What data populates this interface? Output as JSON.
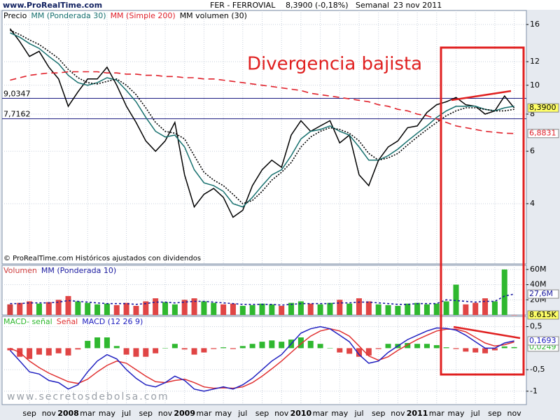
{
  "header": {
    "site": "www.ProRealTime.com",
    "symbol": "FER - FERROVIAL",
    "quote": "8,3900 (-0,18%)",
    "period": "Semanal",
    "date": "23 nov 2011"
  },
  "watermark": "www.secretosdebolsa.com",
  "chart_data": [
    {
      "type": "line",
      "log_scale": true,
      "grid": true,
      "annotation": "Divergencia bajista",
      "note": "© ProRealTime.com Históricos ajustados con dividendos",
      "categories": [
        null,
        null,
        "sep",
        null,
        "nov",
        null,
        "2008",
        null,
        "mar",
        null,
        "may",
        null,
        "jul",
        null,
        "sep",
        null,
        "nov",
        null,
        "2009",
        null,
        "mar",
        null,
        "may",
        null,
        "jul",
        null,
        "sep",
        null,
        "nov",
        null,
        "2010",
        null,
        "mar",
        null,
        "may",
        null,
        "jul",
        null,
        "sep",
        null,
        "nov",
        null,
        "2011",
        null,
        "mar",
        null,
        "may",
        null,
        "jul",
        null,
        "sep",
        null,
        "nov"
      ],
      "ylim": [
        2.51,
        17.83
      ],
      "yticks": [
        4,
        6,
        8,
        10,
        12,
        16
      ],
      "hlines": [
        {
          "value": 9.0347,
          "label": "9,0347"
        },
        {
          "value": 7.7162,
          "label": "7,7162"
        }
      ],
      "series": [
        {
          "name": "Precio",
          "color": "#000000",
          "last_label": "8,3900",
          "label_fill": "#ffff66",
          "values": [
            15.5,
            14,
            12.5,
            13,
            11.5,
            10.5,
            8.5,
            9.5,
            10.5,
            10.5,
            11.5,
            10,
            8.5,
            7.5,
            6.5,
            6,
            6.5,
            7.5,
            5,
            3.9,
            4.3,
            4.5,
            4.2,
            3.6,
            3.8,
            4.6,
            5.2,
            5.6,
            5.3,
            6.8,
            7.6,
            7.0,
            7.3,
            7.6,
            6.4,
            6.8,
            5.0,
            4.6,
            5.6,
            6.2,
            6.5,
            7.2,
            7.3,
            8.1,
            8.6,
            8.8,
            9.1,
            8.6,
            8.5,
            8.0,
            8.2,
            9.2,
            8.39
          ]
        },
        {
          "name": "MM (Ponderada 30)",
          "color": "#16706e",
          "values": [
            15.0,
            14.5,
            13.8,
            13.3,
            12.5,
            11.8,
            10.8,
            10.2,
            10.0,
            10.2,
            10.6,
            10.4,
            9.6,
            8.8,
            7.8,
            7.0,
            6.7,
            6.8,
            6.2,
            5.2,
            4.7,
            4.6,
            4.4,
            4.0,
            3.9,
            4.2,
            4.6,
            5.0,
            5.2,
            5.8,
            6.6,
            7.0,
            7.1,
            7.3,
            7.0,
            6.8,
            6.2,
            5.6,
            5.6,
            5.8,
            6.1,
            6.5,
            6.9,
            7.3,
            7.8,
            8.2,
            8.5,
            8.5,
            8.5,
            8.3,
            8.2,
            8.4,
            8.5
          ]
        },
        {
          "name": "MM (Simple 200)",
          "color": "#e0202a",
          "dash": "9 6",
          "last_label": "6,8831",
          "label_fill": "#ffffff",
          "values": [
            10.4,
            10.6,
            10.8,
            10.9,
            11.0,
            11.0,
            11.1,
            11.1,
            11.1,
            11.1,
            11.0,
            11.0,
            10.9,
            10.9,
            10.8,
            10.8,
            10.7,
            10.7,
            10.6,
            10.6,
            10.5,
            10.5,
            10.4,
            10.3,
            10.2,
            10.1,
            10.0,
            9.9,
            9.8,
            9.7,
            9.6,
            9.4,
            9.3,
            9.2,
            9.1,
            9.0,
            8.9,
            8.8,
            8.6,
            8.5,
            8.3,
            8.2,
            8.0,
            7.9,
            7.7,
            7.5,
            7.3,
            7.2,
            7.1,
            7.0,
            6.95,
            6.9,
            6.8831
          ]
        },
        {
          "name": "MM volumen (30)",
          "color": "#000000",
          "dash": "2 2",
          "values": [
            15.3,
            14.8,
            14.2,
            13.7,
            13,
            12.3,
            11.3,
            10.6,
            10.2,
            10.1,
            10.3,
            10.5,
            10.0,
            9.3,
            8.4,
            7.5,
            7.0,
            6.9,
            6.6,
            5.8,
            5.1,
            4.8,
            4.6,
            4.3,
            4.0,
            4.1,
            4.4,
            4.8,
            5.1,
            5.5,
            6.2,
            6.7,
            7.0,
            7.2,
            7.1,
            6.9,
            6.5,
            5.9,
            5.6,
            5.7,
            5.9,
            6.3,
            6.7,
            7.1,
            7.5,
            7.9,
            8.2,
            8.4,
            8.4,
            8.3,
            8.2,
            8.2,
            8.3
          ]
        }
      ]
    },
    {
      "type": "bar",
      "grid": true,
      "ylim": [
        0,
        65.5
      ],
      "yticks": [
        {
          "value": 20,
          "label": "20M"
        },
        {
          "value": 40,
          "label": "40M"
        },
        {
          "value": 60,
          "label": "60M"
        }
      ],
      "series": [
        {
          "name": "Volumen",
          "color": "#d04040",
          "up_color": "#2fb82f",
          "down_color": "#e04545",
          "last_label": "8.615K",
          "label_fill": "#ffff66",
          "values": [
            14,
            16,
            18,
            15,
            17,
            20,
            25,
            18,
            16,
            14,
            15,
            13,
            16,
            12,
            18,
            22,
            17,
            14,
            20,
            22,
            18,
            16,
            14,
            15,
            12,
            13,
            15,
            14,
            12,
            16,
            18,
            15,
            14,
            16,
            20,
            15,
            22,
            18,
            14,
            13,
            12,
            15,
            16,
            14,
            15,
            18,
            40,
            14,
            16,
            22,
            18,
            60,
            0.008615
          ]
        },
        {
          "name": "MM (Ponderada 10)",
          "type": "line",
          "color": "#1a1aa0",
          "dash": "3 3",
          "last_label": "27,6M",
          "label_fill": "#ffffff",
          "values": [
            15,
            15,
            16,
            16,
            16,
            17,
            19,
            18,
            17,
            16,
            15,
            15,
            15,
            14,
            15,
            17,
            17,
            16,
            17,
            18,
            18,
            17,
            16,
            15,
            14,
            14,
            14,
            14,
            13,
            14,
            15,
            15,
            15,
            15,
            16,
            16,
            17,
            17,
            16,
            15,
            14,
            14,
            15,
            15,
            15,
            20,
            19,
            18,
            17,
            18,
            18,
            25,
            27.6
          ]
        }
      ]
    },
    {
      "type": "line",
      "grid": true,
      "ylim": [
        -1.311,
        0.738
      ],
      "yticks": [
        -1,
        {
          "value": -0.5,
          "label": "-0,5"
        },
        {
          "value": 0.5,
          "label": "0,5"
        }
      ],
      "series": [
        {
          "name": "MACD- señal",
          "type": "bar",
          "color": "#2fb82f",
          "up_color": "#2fb82f",
          "down_color": "#e04545",
          "last_label": "0,0249",
          "label_fill": "#ffffff",
          "values": [
            -0.05,
            -0.2,
            -0.25,
            -0.15,
            -0.17,
            -0.12,
            -0.17,
            -0.03,
            0.17,
            0.25,
            0.25,
            0.05,
            -0.15,
            -0.2,
            -0.2,
            -0.12,
            0.0,
            0.1,
            -0.03,
            -0.15,
            -0.1,
            -0.02,
            0.02,
            -0.02,
            0.05,
            0.1,
            0.15,
            0.18,
            0.15,
            0.2,
            0.25,
            0.17,
            0.1,
            0.0,
            -0.1,
            -0.13,
            -0.2,
            -0.17,
            -0.02,
            0.1,
            0.1,
            0.12,
            0.1,
            0.1,
            0.07,
            0.02,
            -0.02,
            -0.08,
            -0.1,
            -0.12,
            -0.05,
            0.04,
            0.0249
          ]
        },
        {
          "name": "Señal",
          "color": "#e03030",
          "values": [
            0.0,
            -0.1,
            -0.3,
            -0.45,
            -0.58,
            -0.68,
            -0.78,
            -0.82,
            -0.72,
            -0.55,
            -0.4,
            -0.3,
            -0.35,
            -0.5,
            -0.65,
            -0.78,
            -0.8,
            -0.75,
            -0.72,
            -0.8,
            -0.9,
            -0.93,
            -0.92,
            -0.93,
            -0.9,
            -0.8,
            -0.65,
            -0.48,
            -0.3,
            -0.1,
            0.1,
            0.28,
            0.4,
            0.45,
            0.4,
            0.28,
            0.05,
            -0.18,
            -0.28,
            -0.2,
            -0.05,
            0.08,
            0.2,
            0.3,
            0.4,
            0.44,
            0.44,
            0.38,
            0.25,
            0.12,
            0.05,
            0.08,
            0.1444
          ]
        },
        {
          "name": "MACD (12 26 9)",
          "color": "#2020c0",
          "last_label": "0,1693",
          "label_fill": "#ffffff",
          "values": [
            -0.05,
            -0.3,
            -0.55,
            -0.6,
            -0.75,
            -0.8,
            -0.95,
            -0.85,
            -0.55,
            -0.3,
            -0.15,
            -0.25,
            -0.5,
            -0.7,
            -0.85,
            -0.9,
            -0.8,
            -0.65,
            -0.75,
            -0.95,
            -1.0,
            -0.95,
            -0.9,
            -0.95,
            -0.85,
            -0.7,
            -0.5,
            -0.3,
            -0.15,
            0.1,
            0.35,
            0.45,
            0.5,
            0.45,
            0.3,
            0.15,
            -0.15,
            -0.35,
            -0.3,
            -0.1,
            0.05,
            0.2,
            0.3,
            0.4,
            0.47,
            0.46,
            0.42,
            0.3,
            0.15,
            0.0,
            0.0,
            0.12,
            0.1693
          ]
        }
      ]
    }
  ]
}
